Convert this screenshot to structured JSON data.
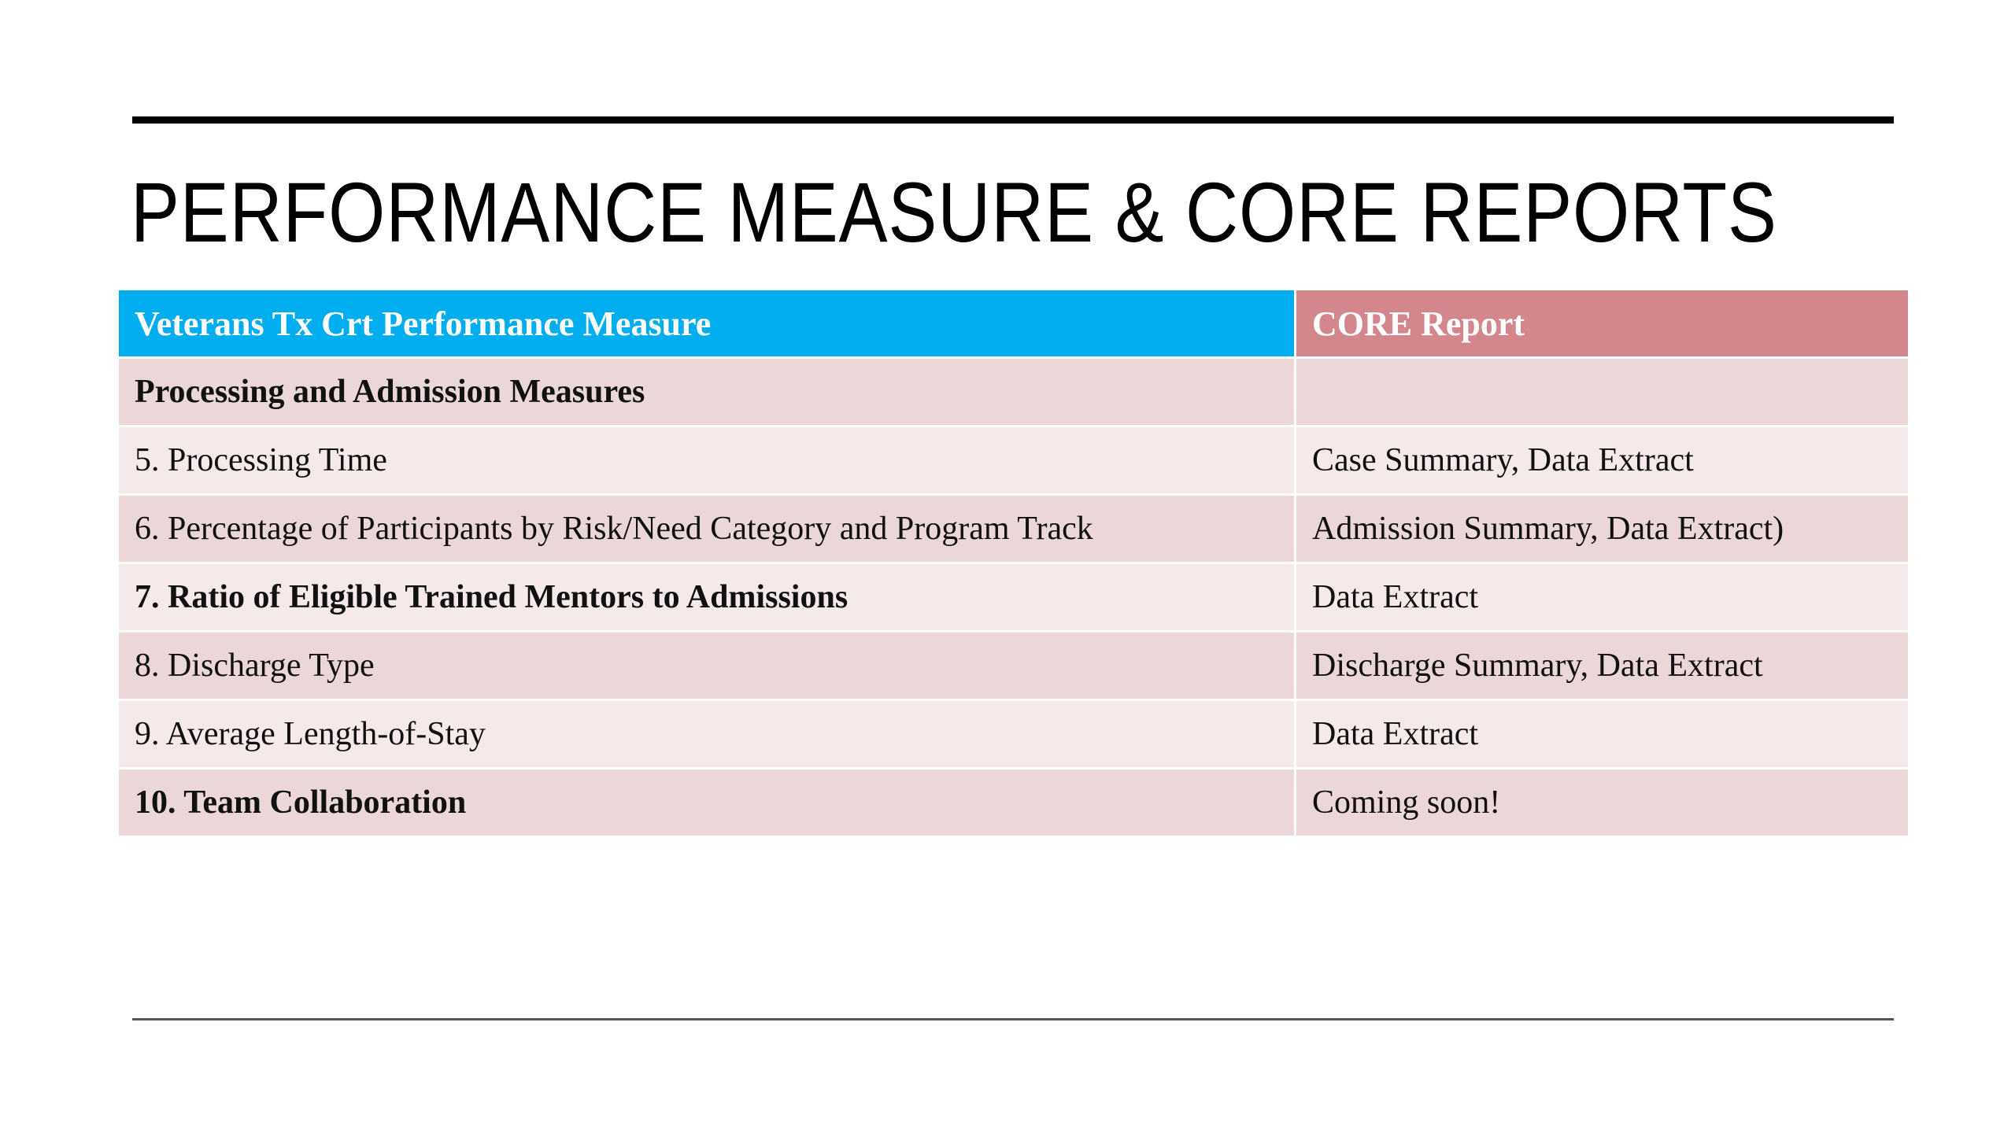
{
  "slide": {
    "title": "PERFORMANCE MEASURE & CORE REPORTS"
  },
  "colors": {
    "header_measure_bg": "#00aeef",
    "header_core_bg": "#d4868d",
    "row_dark": "#ebd6d8",
    "row_light": "#f6e9ea",
    "highlight_text": "#1e7cc2"
  },
  "table": {
    "headers": {
      "measure": "Veterans Tx Crt Performance Measure",
      "core": "CORE Report"
    },
    "section": {
      "measure": "Processing and Admission Measures",
      "core": ""
    },
    "rows": [
      {
        "measure": "5. Processing Time",
        "core": "Case Summary, Data Extract"
      },
      {
        "measure": "6. Percentage of Participants by Risk/Need Category and Program Track",
        "core": "Admission Summary, Data Extract)"
      },
      {
        "measure": "7. Ratio of Eligible Trained Mentors to Admissions",
        "core": "Data Extract"
      },
      {
        "measure": "8. Discharge Type",
        "core": "Discharge Summary, Data Extract"
      },
      {
        "measure": "9. Average Length-of-Stay",
        "core": "Data Extract"
      },
      {
        "measure": "10. Team Collaboration",
        "core": "Coming soon!"
      }
    ]
  }
}
